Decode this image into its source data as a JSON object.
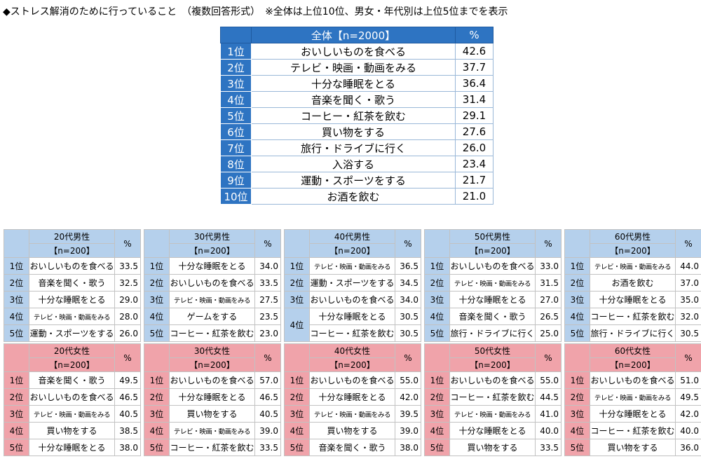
{
  "title": "◆ストレス解消のために行っていること　（複数回答形式）　※全体は上位10位、男女・年代別は上位5位までを表示",
  "chart_data": {
    "type": "table",
    "overall": {
      "header": "全体【n=2000】",
      "unit": "%",
      "rows": [
        {
          "rank": "1位",
          "item": "おいしいものを食べる",
          "value": "42.6"
        },
        {
          "rank": "2位",
          "item": "テレビ・映画・動画をみる",
          "value": "37.7"
        },
        {
          "rank": "3位",
          "item": "十分な睡眠をとる",
          "value": "36.4"
        },
        {
          "rank": "4位",
          "item": "音楽を聞く・歌う",
          "value": "31.4"
        },
        {
          "rank": "5位",
          "item": "コーヒー・紅茶を飲む",
          "value": "29.1"
        },
        {
          "rank": "6位",
          "item": "買い物をする",
          "value": "27.6"
        },
        {
          "rank": "7位",
          "item": "旅行・ドライブに行く",
          "value": "26.0"
        },
        {
          "rank": "8位",
          "item": "入浴する",
          "value": "23.4"
        },
        {
          "rank": "9位",
          "item": "運動・スポーツをする",
          "value": "21.7"
        },
        {
          "rank": "10位",
          "item": "お酒を飲む",
          "value": "21.0"
        }
      ]
    },
    "male": [
      {
        "group": "20代男性",
        "n": "【n=200】",
        "unit": "%",
        "rows": [
          {
            "rank": "1位",
            "item": "おいしいものを食べる",
            "value": "33.5"
          },
          {
            "rank": "2位",
            "item": "音楽を聞く・歌う",
            "value": "32.5"
          },
          {
            "rank": "3位",
            "item": "十分な睡眠をとる",
            "value": "29.0"
          },
          {
            "rank": "4位",
            "item": "テレビ・映画・動画をみる",
            "value": "28.0"
          },
          {
            "rank": "5位",
            "item": "運動・スポーツをする",
            "value": "26.0"
          }
        ]
      },
      {
        "group": "30代男性",
        "n": "【n=200】",
        "unit": "%",
        "rows": [
          {
            "rank": "1位",
            "item": "十分な睡眠をとる",
            "value": "34.0"
          },
          {
            "rank": "2位",
            "item": "おいしいものを食べる",
            "value": "33.5"
          },
          {
            "rank": "3位",
            "item": "テレビ・映画・動画をみる",
            "value": "27.5"
          },
          {
            "rank": "4位",
            "item": "ゲームをする",
            "value": "23.5"
          },
          {
            "rank": "5位",
            "item": "コーヒー・紅茶を飲む",
            "value": "23.0"
          }
        ]
      },
      {
        "group": "40代男性",
        "n": "【n=200】",
        "unit": "%",
        "rows": [
          {
            "rank": "1位",
            "item": "テレビ・映画・動画をみる",
            "value": "36.5"
          },
          {
            "rank": "2位",
            "item": "運動・スポーツをする",
            "value": "34.5"
          },
          {
            "rank": "3位",
            "item": "おいしいものを食べる",
            "value": "34.0"
          },
          {
            "rank": "4位",
            "item": "十分な睡眠をとる",
            "value": "30.5"
          },
          {
            "rank": "",
            "item": "コーヒー・紅茶を飲む",
            "value": "30.5"
          }
        ]
      },
      {
        "group": "50代男性",
        "n": "【n=200】",
        "unit": "%",
        "rows": [
          {
            "rank": "1位",
            "item": "おいしいものを食べる",
            "value": "33.0"
          },
          {
            "rank": "2位",
            "item": "テレビ・映画・動画をみる",
            "value": "31.5"
          },
          {
            "rank": "3位",
            "item": "十分な睡眠をとる",
            "value": "27.0"
          },
          {
            "rank": "4位",
            "item": "音楽を聞く・歌う",
            "value": "26.5"
          },
          {
            "rank": "5位",
            "item": "旅行・ドライブに行く",
            "value": "25.0"
          }
        ]
      },
      {
        "group": "60代男性",
        "n": "【n=200】",
        "unit": "%",
        "rows": [
          {
            "rank": "1位",
            "item": "テレビ・映画・動画をみる",
            "value": "44.0"
          },
          {
            "rank": "2位",
            "item": "お酒を飲む",
            "value": "37.0"
          },
          {
            "rank": "3位",
            "item": "十分な睡眠をとる",
            "value": "35.0"
          },
          {
            "rank": "4位",
            "item": "コーヒー・紅茶を飲む",
            "value": "32.0"
          },
          {
            "rank": "5位",
            "item": "旅行・ドライブに行く",
            "value": "30.5"
          }
        ]
      }
    ],
    "female": [
      {
        "group": "20代女性",
        "n": "【n=200】",
        "unit": "%",
        "rows": [
          {
            "rank": "1位",
            "item": "音楽を聞く・歌う",
            "value": "49.5"
          },
          {
            "rank": "2位",
            "item": "おいしいものを食べる",
            "value": "46.5"
          },
          {
            "rank": "3位",
            "item": "テレビ・映画・動画をみる",
            "value": "40.5"
          },
          {
            "rank": "4位",
            "item": "買い物をする",
            "value": "38.5"
          },
          {
            "rank": "5位",
            "item": "十分な睡眠をとる",
            "value": "38.0"
          }
        ]
      },
      {
        "group": "30代女性",
        "n": "【n=200】",
        "unit": "%",
        "rows": [
          {
            "rank": "1位",
            "item": "おいしいものを食べる",
            "value": "57.0"
          },
          {
            "rank": "2位",
            "item": "十分な睡眠をとる",
            "value": "46.5"
          },
          {
            "rank": "3位",
            "item": "買い物をする",
            "value": "40.5"
          },
          {
            "rank": "4位",
            "item": "テレビ・映画・動画をみる",
            "value": "39.0"
          },
          {
            "rank": "5位",
            "item": "コーヒー・紅茶を飲む",
            "value": "33.5"
          }
        ]
      },
      {
        "group": "40代女性",
        "n": "【n=200】",
        "unit": "%",
        "rows": [
          {
            "rank": "1位",
            "item": "おいしいものを食べる",
            "value": "55.0"
          },
          {
            "rank": "2位",
            "item": "十分な睡眠をとる",
            "value": "42.0"
          },
          {
            "rank": "3位",
            "item": "テレビ・映画・動画をみる",
            "value": "39.5"
          },
          {
            "rank": "4位",
            "item": "買い物をする",
            "value": "39.0"
          },
          {
            "rank": "5位",
            "item": "音楽を聞く・歌う",
            "value": "38.0"
          }
        ]
      },
      {
        "group": "50代女性",
        "n": "【n=200】",
        "unit": "%",
        "rows": [
          {
            "rank": "1位",
            "item": "おいしいものを食べる",
            "value": "55.0"
          },
          {
            "rank": "2位",
            "item": "コーヒー・紅茶を飲む",
            "value": "44.5"
          },
          {
            "rank": "3位",
            "item": "テレビ・映画・動画をみる",
            "value": "41.0"
          },
          {
            "rank": "4位",
            "item": "十分な睡眠をとる",
            "value": "40.0"
          },
          {
            "rank": "5位",
            "item": "買い物をする",
            "value": "33.5"
          }
        ]
      },
      {
        "group": "60代女性",
        "n": "【n=200】",
        "unit": "%",
        "rows": [
          {
            "rank": "1位",
            "item": "おいしいものを食べる",
            "value": "51.0"
          },
          {
            "rank": "2位",
            "item": "テレビ・映画・動画をみる",
            "value": "49.5"
          },
          {
            "rank": "3位",
            "item": "十分な睡眠をとる",
            "value": "42.0"
          },
          {
            "rank": "4位",
            "item": "コーヒー・紅茶を飲む",
            "value": "40.0"
          },
          {
            "rank": "5位",
            "item": "買い物をする",
            "value": "36.0"
          }
        ]
      }
    ]
  }
}
